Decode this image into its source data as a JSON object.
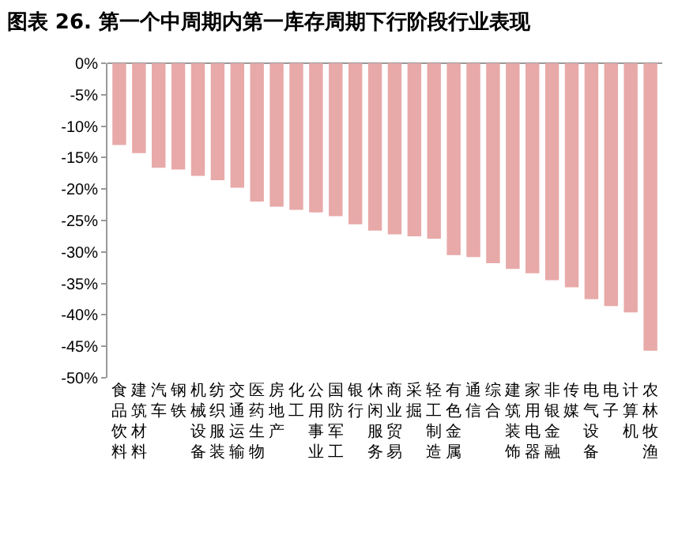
{
  "chart_data": {
    "type": "bar",
    "title": "图表 26. 第一个中周期内第一库存周期下行阶段行业表现",
    "categories": [
      "食品饮料",
      "建筑材料",
      "汽车",
      "钢铁",
      "机械设备",
      "纺织服装",
      "交通运输",
      "医药生物",
      "房地产",
      "化工",
      "公用事业",
      "国防军工",
      "银行",
      "休闲服务",
      "商业贸易",
      "采掘",
      "轻工制造",
      "有色金属",
      "通信",
      "综合",
      "建筑装饰",
      "家用电器",
      "非银金融",
      "传媒",
      "电气设备",
      "电子",
      "计算机",
      "农林牧渔"
    ],
    "values": [
      -13,
      -14.3,
      -16.6,
      -16.9,
      -17.9,
      -18.6,
      -19.8,
      -22,
      -22.8,
      -23.3,
      -23.7,
      -24.3,
      -25.6,
      -26.6,
      -27.2,
      -27.5,
      -27.9,
      -30.5,
      -30.8,
      -31.8,
      -32.7,
      -33.4,
      -34.5,
      -35.6,
      -37.5,
      -38.6,
      -39.6,
      -45.7
    ],
    "color": "#e8a9a9",
    "ylim": [
      -50,
      0
    ],
    "yticks": [
      {
        "value": 0,
        "label": "0%"
      },
      {
        "value": -5,
        "label": "-5%"
      },
      {
        "value": -10,
        "label": "-10%"
      },
      {
        "value": -15,
        "label": "-15%"
      },
      {
        "value": -20,
        "label": "-20%"
      },
      {
        "value": -25,
        "label": "-25%"
      },
      {
        "value": -30,
        "label": "-30%"
      },
      {
        "value": -35,
        "label": "-35%"
      },
      {
        "value": -40,
        "label": "-40%"
      },
      {
        "value": -45,
        "label": "-45%"
      },
      {
        "value": -50,
        "label": "-50%"
      }
    ],
    "grid": false,
    "legend": false
  }
}
